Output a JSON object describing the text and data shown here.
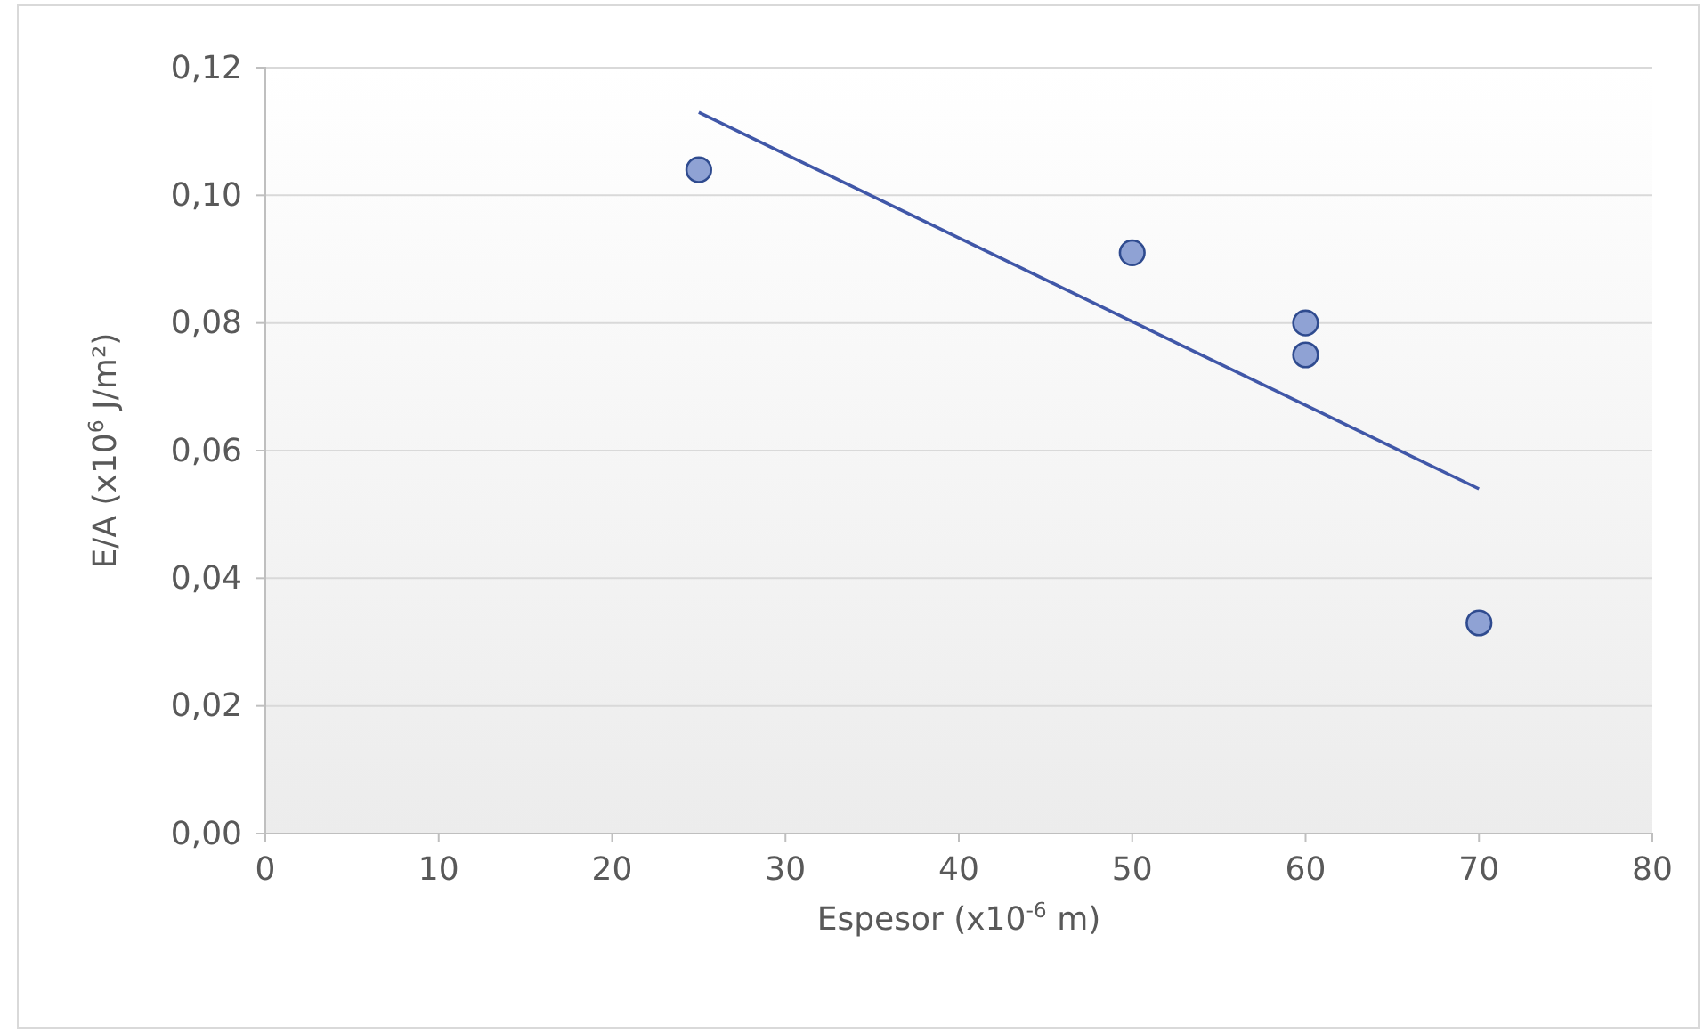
{
  "chart_data": {
    "type": "scatter",
    "xlabel": "Espesor (x10$^{-6}$ m)",
    "ylabel": "E/A (x10$^{6}$ J/m²)",
    "xlim": [
      0,
      80
    ],
    "xticks": [
      0,
      10,
      20,
      30,
      40,
      50,
      60,
      70,
      80
    ],
    "ylim": [
      0,
      0.12
    ],
    "yticks": [
      {
        "value": 0,
        "label": "0,00"
      },
      {
        "value": 0.02,
        "label": "0,02"
      },
      {
        "value": 0.04,
        "label": "0,04"
      },
      {
        "value": 0.06,
        "label": "0,06"
      },
      {
        "value": 0.08,
        "label": "0,08"
      },
      {
        "value": 0.1,
        "label": "0,10"
      },
      {
        "value": 0.12,
        "label": "0,12"
      }
    ],
    "grid": "y",
    "marker": "circle",
    "series": [
      {
        "color": "#8fa2d4",
        "x": [
          25,
          50,
          60,
          60,
          70
        ],
        "values": [
          0.104,
          0.091,
          0.08,
          0.075,
          0.033
        ]
      },
      {
        "type": "line",
        "color": "#4057a8",
        "x": [
          25,
          70
        ],
        "values": [
          0.113,
          0.054
        ],
        "marker": "none",
        "line_style": "solid"
      }
    ]
  }
}
